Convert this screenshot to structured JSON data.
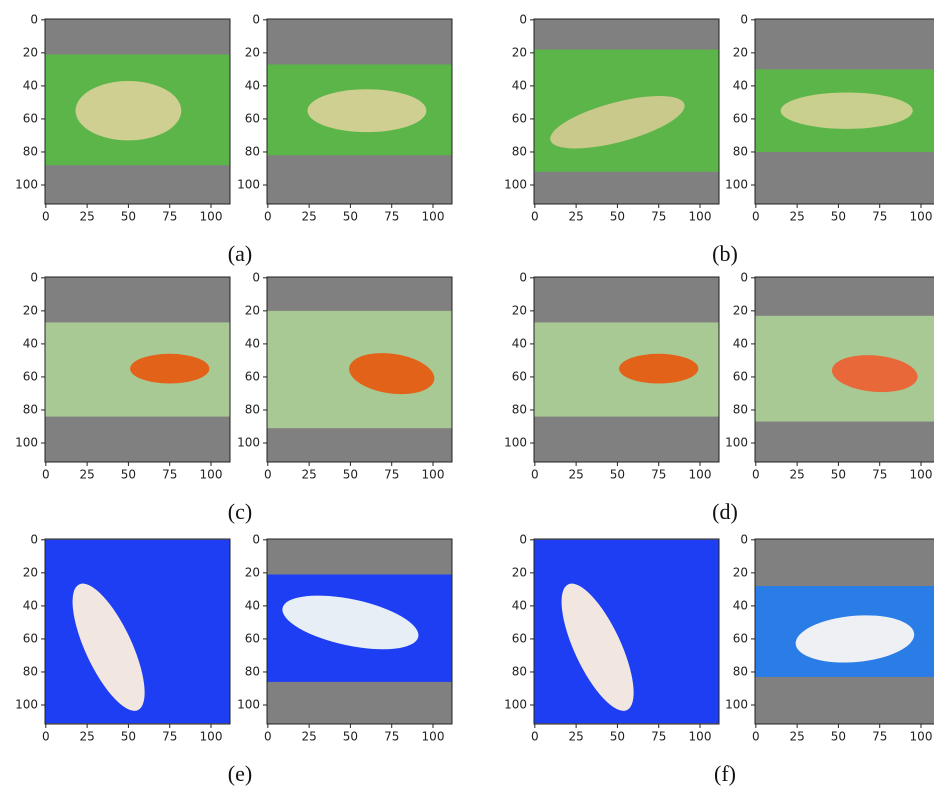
{
  "figure": {
    "yticks": [
      0,
      20,
      40,
      60,
      80,
      100
    ],
    "xticks": [
      0,
      25,
      50,
      75,
      100
    ],
    "labels": [
      "(a)",
      "(b)",
      "(c)",
      "(d)",
      "(e)",
      "(f)"
    ]
  }
}
